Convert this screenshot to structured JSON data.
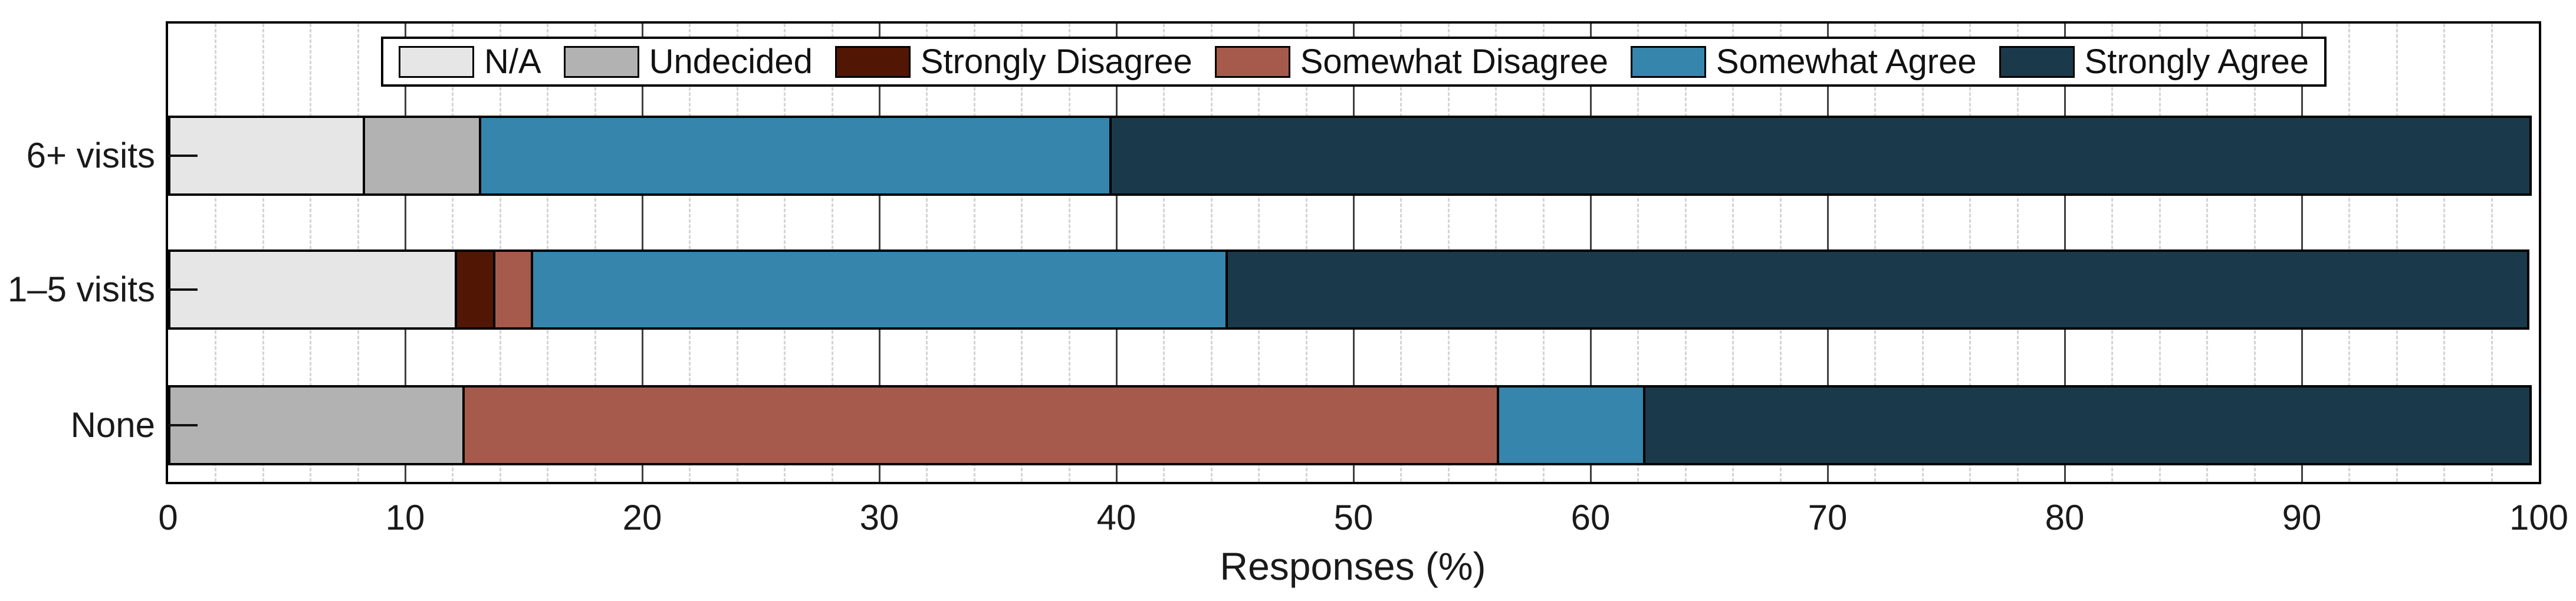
{
  "chart_data": {
    "type": "bar",
    "orientation": "horizontal-stacked",
    "title": "",
    "xlabel": "Responses (%)",
    "ylabel": "",
    "xlim": [
      0,
      100
    ],
    "x_ticks": [
      0,
      10,
      20,
      30,
      40,
      50,
      60,
      70,
      80,
      90,
      100
    ],
    "minor_grid_step": 2,
    "grid": "major-solid, minor-dashed",
    "legend_position": "top-center-inside",
    "categories": [
      "6+ visits",
      "1–5 visits",
      "None"
    ],
    "series": [
      {
        "name": "N/A",
        "color": "#E6E6E6",
        "values": [
          8.3,
          12.2,
          0
        ]
      },
      {
        "name": "Undecided",
        "color": "#B2B2B2",
        "values": [
          5.0,
          0,
          12.5
        ]
      },
      {
        "name": "Strongly Disagree",
        "color": "#521605",
        "values": [
          0,
          1.7,
          0
        ]
      },
      {
        "name": "Somewhat Disagree",
        "color": "#A65A4B",
        "values": [
          0,
          1.7,
          43.75
        ]
      },
      {
        "name": "Somewhat Agree",
        "color": "#3585AC",
        "values": [
          26.7,
          29.4,
          6.25
        ]
      },
      {
        "name": "Strongly Agree",
        "color": "#1A3A4B",
        "values": [
          60.0,
          55.0,
          37.5
        ]
      }
    ]
  },
  "colors": {
    "background": "#FFFFFF",
    "axis_border": "#000000",
    "grid_major": "#404040",
    "grid_minor": "#D4D4D4",
    "text": "#1A1A1A"
  }
}
